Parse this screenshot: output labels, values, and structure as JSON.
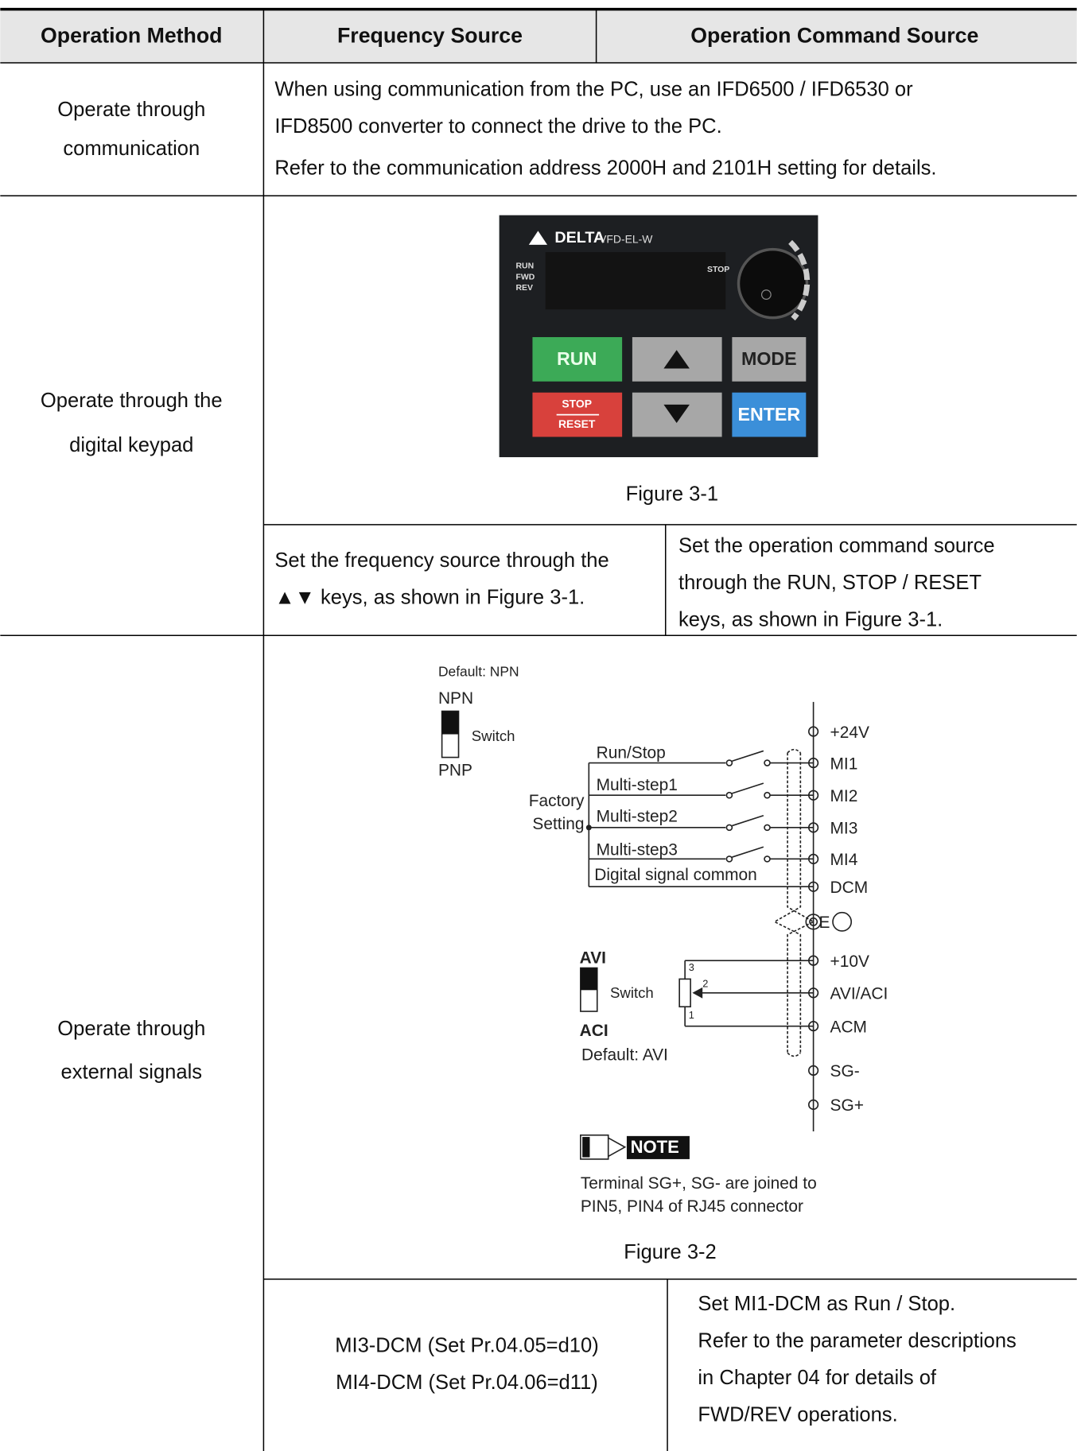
{
  "header": {
    "operation_method": "Operation Method",
    "frequency_source": "Frequency Source",
    "operation_command_source": "Operation Command Source"
  },
  "rows": [
    {
      "method": [
        "Operate through",
        "communication"
      ],
      "description": [
        "When using communication from the PC, use an IFD6500 / IFD6530 or",
        "IFD8500 converter to connect the drive to the PC.",
        "Refer to the communication address 2000H and 2101H setting for details."
      ]
    },
    {
      "method": [
        "Operate through the",
        "digital keypad"
      ],
      "keypad": [
        "DELTA",
        "VFD-EL-W",
        "RUN",
        "FWD",
        "REV",
        "STOP",
        "RUN",
        "MODE",
        "STOP",
        "RESET",
        "ENTER"
      ],
      "caption": "Figure 3-1",
      "frequency_source": [
        "Set the frequency source through the",
        "▲▼  keys, as shown in Figure 3-1."
      ],
      "command_source": [
        "Set the operation command source",
        "through the RUN, STOP / RESET",
        "keys, as shown in Figure 3-1."
      ]
    },
    {
      "method": [
        "Operate through",
        "external signals"
      ],
      "diagram": [
        "Default: NPN",
        "NPN",
        "Switch",
        "PNP",
        "Factory",
        "Setting",
        "Run/Stop",
        "Multi-step1",
        "Multi-step2",
        "Multi-step3",
        "Digital signal common",
        "+24V",
        "MI1",
        "MI2",
        "MI3",
        "MI4",
        "DCM",
        "E",
        "+10V",
        "AVI/ACI",
        "ACM",
        "SG-",
        "SG+",
        "AVI",
        "Switch",
        "ACI",
        "Default: AVI",
        "3",
        "2",
        "1",
        "NOTE",
        "Terminal SG+, SG- are joined to",
        "PIN5, PIN4 of RJ45 connector"
      ],
      "caption": "Figure 3-2",
      "frequency_source": [
        "MI3-DCM (Set Pr.04.05=d10)",
        "MI4-DCM (Set Pr.04.06=d11)"
      ],
      "command_source": [
        "Set MI1-DCM as Run / Stop.",
        "Refer to the parameter descriptions",
        "in Chapter 04 for details of",
        "FWD/REV operations."
      ]
    }
  ]
}
